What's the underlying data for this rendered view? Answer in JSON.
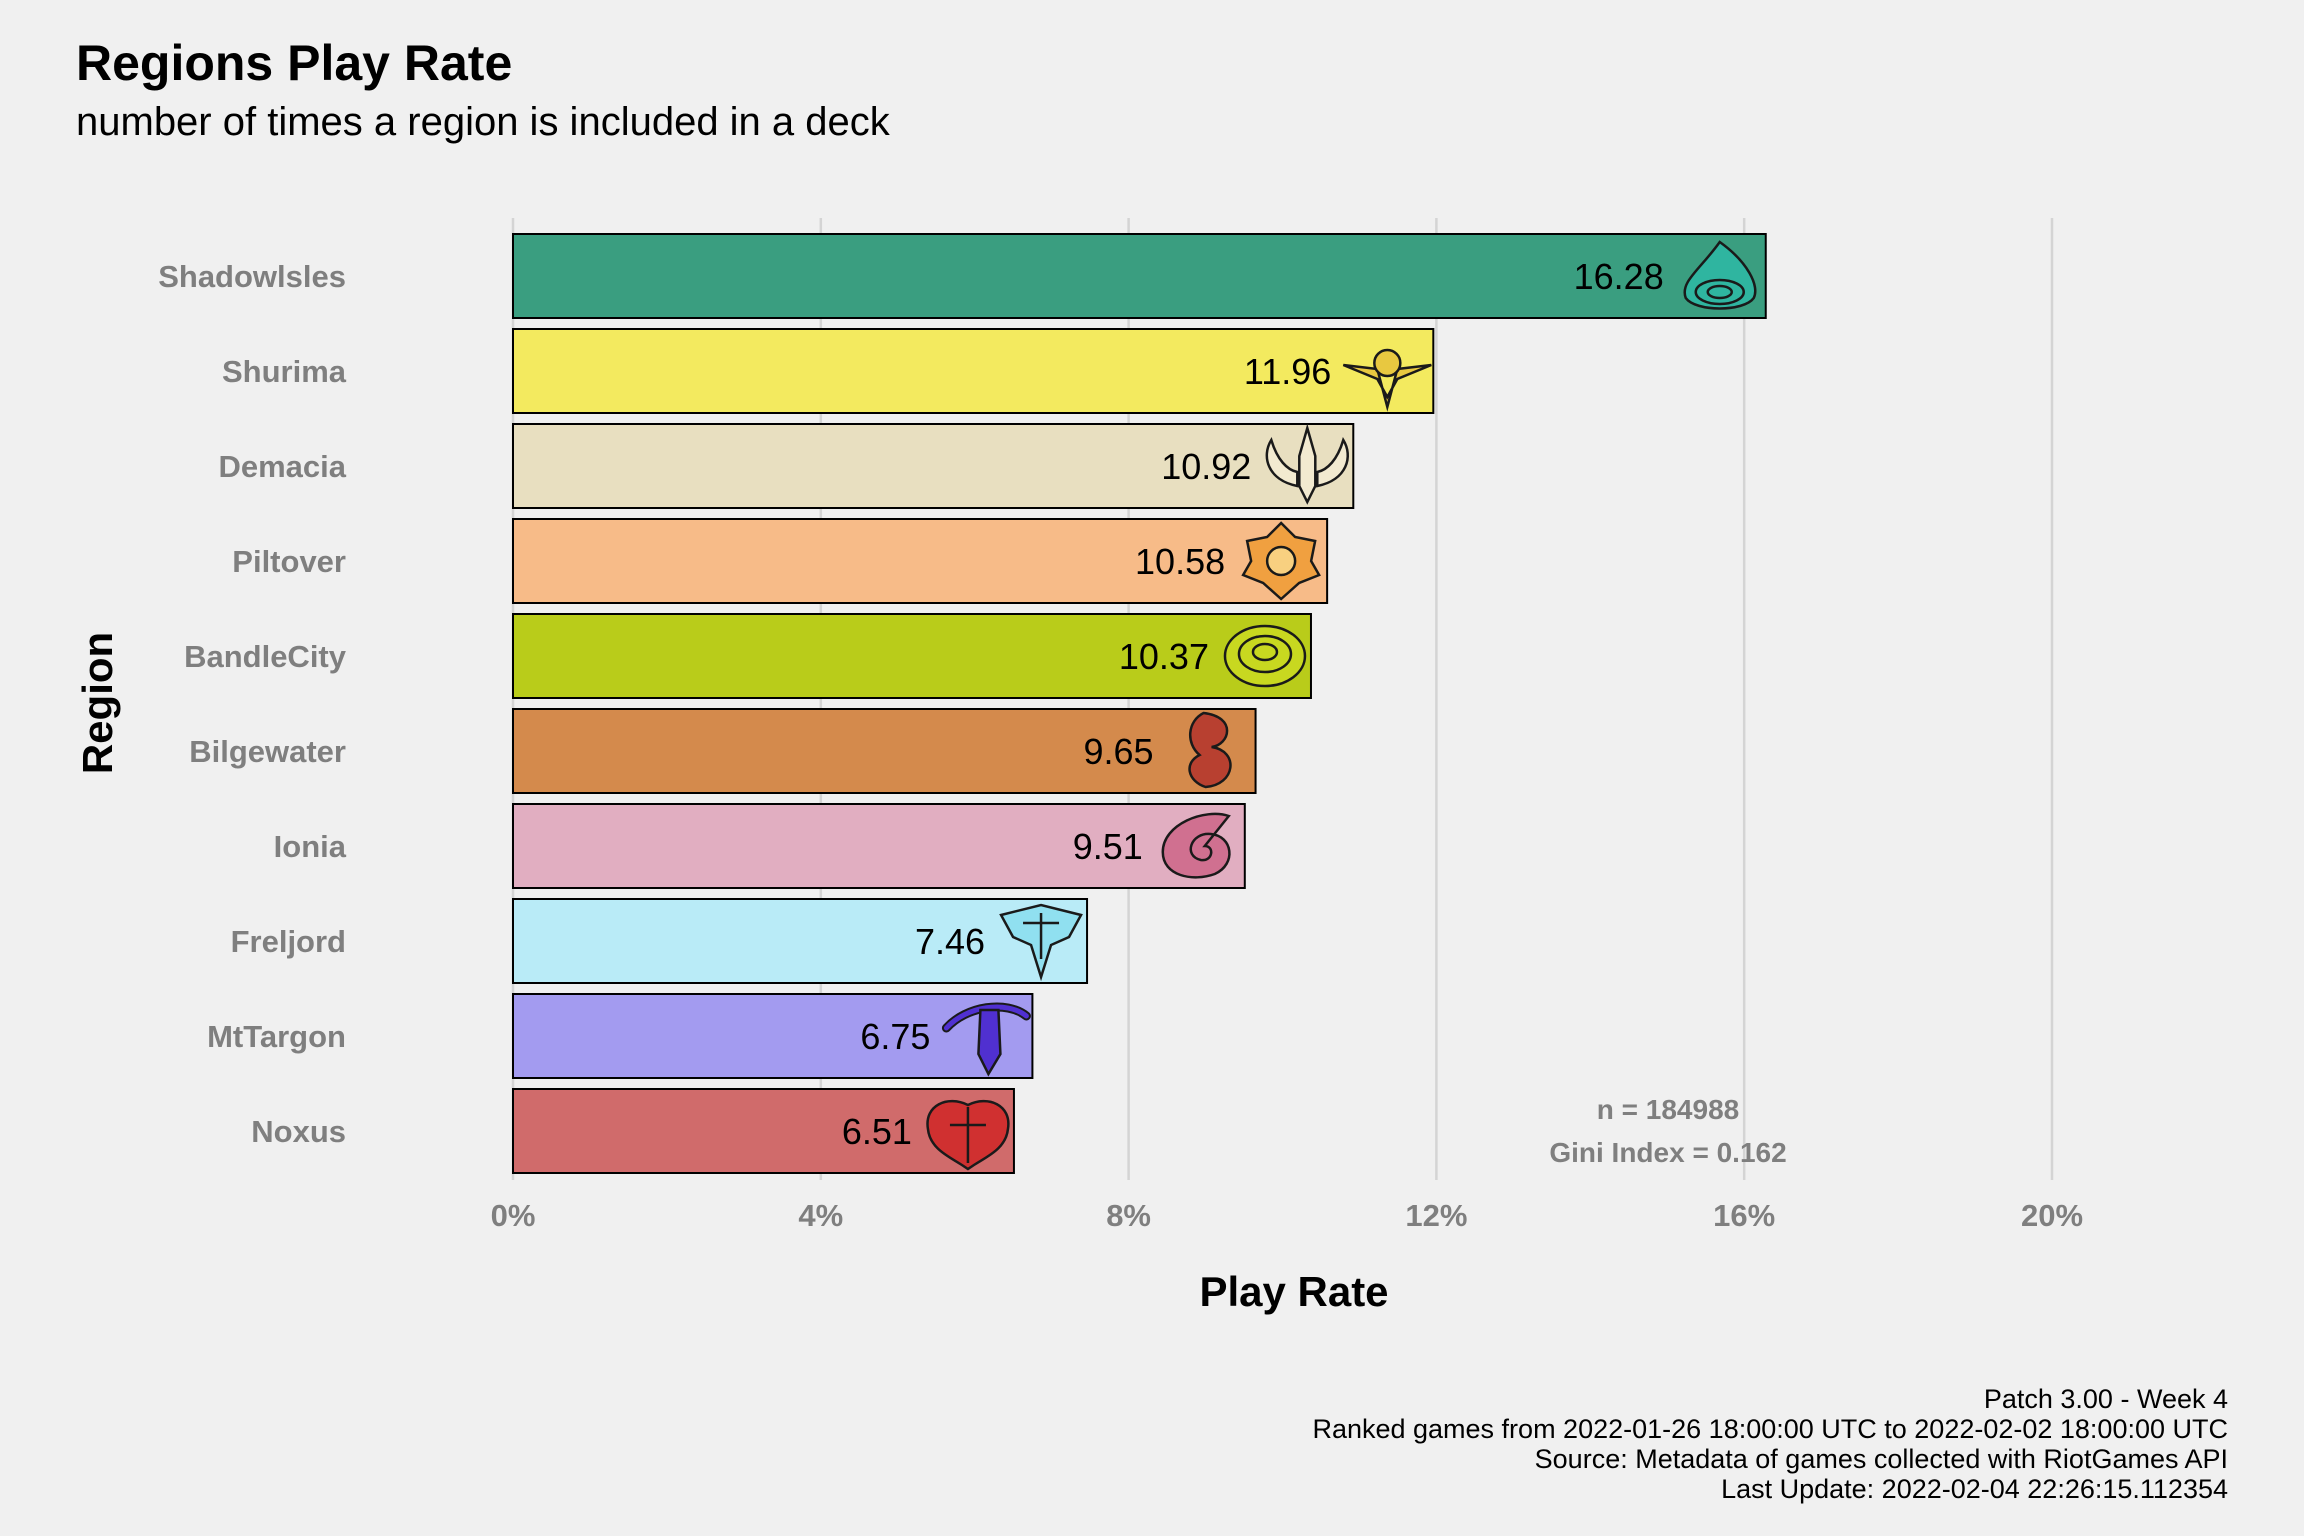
{
  "title": "Regions Play Rate",
  "subtitle": "number of times a region is included in a deck",
  "chart_data": {
    "type": "bar",
    "orientation": "horizontal",
    "title": "Regions Play Rate",
    "subtitle": "number of times a region is included in a deck",
    "xlabel": "Play Rate",
    "ylabel": "Region",
    "xlim": [
      0,
      20
    ],
    "xticks": [
      0,
      4,
      8,
      12,
      16,
      20
    ],
    "xtick_labels": [
      "0%",
      "4%",
      "8%",
      "12%",
      "16%",
      "20%"
    ],
    "grid": "vertical major",
    "categories": [
      "Shadowlsles",
      "Shurima",
      "Demacia",
      "Piltover",
      "BandleCity",
      "Bilgewater",
      "Ionia",
      "Freljord",
      "MtTargon",
      "Noxus"
    ],
    "values": [
      16.28,
      11.96,
      10.92,
      10.58,
      10.37,
      9.65,
      9.51,
      7.46,
      6.75,
      6.51
    ],
    "value_labels": [
      "16.28",
      "11.96",
      "10.92",
      "10.58",
      "10.37",
      "9.65",
      "9.51",
      "7.46",
      "6.75",
      "6.51"
    ],
    "colors": [
      "#3a9e80",
      "#f3ea5f",
      "#e8dfc0",
      "#f7bb88",
      "#b9cc1a",
      "#d48a4c",
      "#e1aec1",
      "#b9ebf7",
      "#a39bf0",
      "#d06b6b"
    ],
    "icon_colors": [
      "#2fb5a0",
      "#e8c840",
      "#f2ead0",
      "#f0a040",
      "#c8d820",
      "#b84030",
      "#d07090",
      "#90e0f0",
      "#5030d0",
      "#d03030"
    ],
    "icons": [
      "shadowisles-icon",
      "shurima-icon",
      "demacia-icon",
      "piltover-icon",
      "bandlecity-icon",
      "bilgewater-icon",
      "ionia-icon",
      "freljord-icon",
      "mttargon-icon",
      "noxus-icon"
    ],
    "annotations": [
      "n = 184988",
      "Gini Index = 0.162"
    ]
  },
  "caption": [
    "Patch 3.00 - Week 4",
    "Ranked games from 2022-01-26 18:00:00 UTC to 2022-02-02 18:00:00 UTC",
    "Source: Metadata of games collected with RiotGames API",
    "Last Update: 2022-02-04 22:26:15.112354"
  ]
}
